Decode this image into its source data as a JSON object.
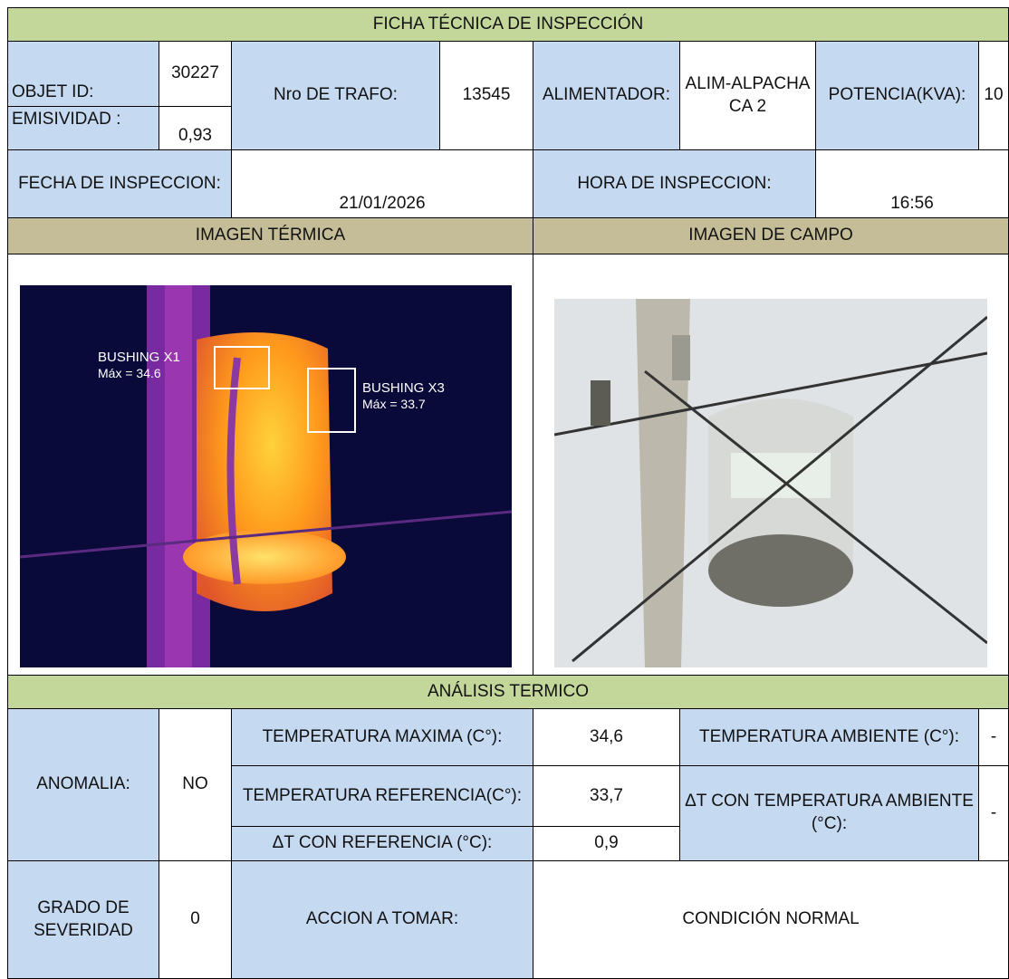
{
  "header": {
    "title": "FICHA TÉCNICA DE INSPECCIÓN"
  },
  "info": {
    "objet_id_label": "OBJET ID:",
    "objet_id": "30227",
    "emisividad_label": "EMISIVIDAD :",
    "emisividad": "0,93",
    "trafo_label": "Nro DE TRAFO:",
    "trafo": "13545",
    "alimentador_label": "ALIMENTADOR:",
    "alimentador": "ALIM-ALPACHACA 2",
    "potencia_label": "POTENCIA(KVA):",
    "potencia": "10",
    "fecha_label": "FECHA DE INSPECCION:",
    "fecha": "21/01/2026",
    "hora_label": "HORA DE INSPECCION:",
    "hora": "16:56"
  },
  "images": {
    "thermal_title": "IMAGEN TÉRMICA",
    "field_title": "IMAGEN DE CAMPO",
    "annotations": [
      "BUSHING X1",
      "Máx = 34.6",
      "BUSHING X3",
      "Máx = 33.7"
    ]
  },
  "analysis": {
    "title": "ANÁLISIS TERMICO",
    "anomalia_label": "ANOMALIA:",
    "anomalia": "NO",
    "temp_max_label": "TEMPERATURA MAXIMA (C°):",
    "temp_max": "34,6",
    "temp_amb_label": "TEMPERATURA AMBIENTE (C°):",
    "temp_amb": "-",
    "temp_ref_label": "TEMPERATURA REFERENCIA(C°):",
    "temp_ref": "33,7",
    "delta_ref_label": "ΔT CON REFERENCIA (°C):",
    "delta_ref": "0,9",
    "delta_amb_label": "ΔT CON TEMPERATURA AMBIENTE (°C):",
    "delta_amb": "-",
    "severidad_label": "GRADO DE SEVERIDAD",
    "severidad": "0",
    "accion_label": "ACCION A TOMAR:",
    "accion": "CONDICIÓN NORMAL"
  }
}
